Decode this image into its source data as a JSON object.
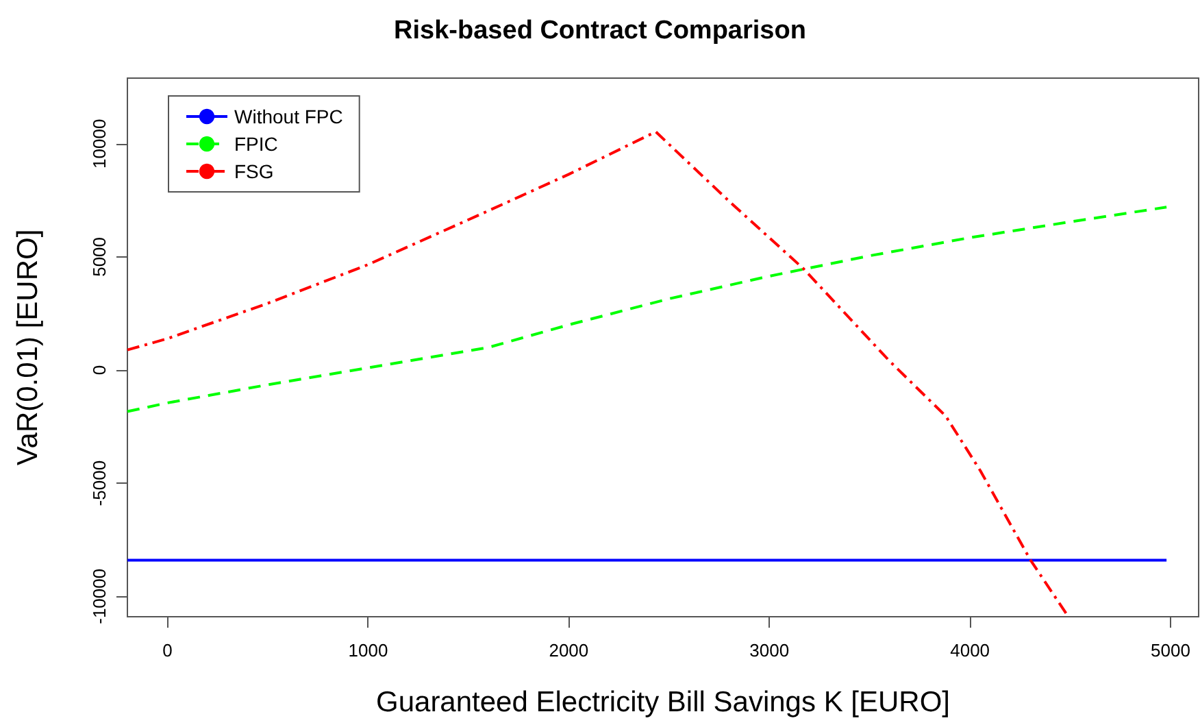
{
  "chart_data": {
    "type": "line",
    "title": "Risk-based Contract Comparison",
    "xlabel": "Guaranteed Electricity Bill Savings K [EURO]",
    "ylabel": "VaR(0.01) [EURO]",
    "xlim": [
      -200,
      5140
    ],
    "xticks": [
      0,
      1000,
      2000,
      3000,
      4000,
      5000
    ],
    "ylim": [
      -10900,
      12900
    ],
    "yticks": [
      -10000,
      -5000,
      0,
      5000,
      10000
    ],
    "grid": false,
    "legend": "top left",
    "marker": "none",
    "series": [
      {
        "name": "Without FPC",
        "color": "#0000ff",
        "line_style": "solid",
        "x": [
          -200,
          4980
        ],
        "values": [
          -8400,
          -8400
        ]
      },
      {
        "name": "FPIC",
        "color": "#00ff00",
        "line_style": "dashed",
        "x": [
          -200,
          0,
          500,
          1000,
          1600,
          2000,
          2500,
          3000,
          3500,
          4000,
          4500,
          4980
        ],
        "values": [
          -1830,
          -1450,
          -650,
          100,
          1000,
          2000,
          3150,
          4150,
          5050,
          5850,
          6550,
          7200
        ]
      },
      {
        "name": "FSG",
        "color": "#ff0000",
        "line_style": "dashdot",
        "x": [
          -200,
          0,
          500,
          1000,
          1600,
          2000,
          2434,
          2802,
          3170,
          3600,
          3879,
          4052,
          4302,
          4483
        ],
        "values": [
          890,
          1390,
          2950,
          4660,
          7040,
          8650,
          10530,
          7440,
          4480,
          390,
          -2030,
          -4450,
          -8400,
          -10800
        ]
      }
    ]
  }
}
